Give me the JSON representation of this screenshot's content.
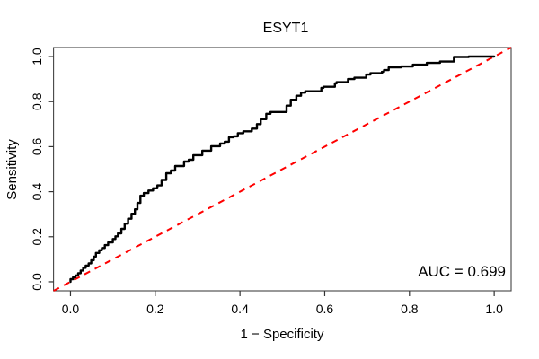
{
  "chart_data": {
    "type": "line",
    "subtype": "roc-step-curve",
    "title": "ESYT1",
    "xlabel": "1 − Specificity",
    "ylabel": "Sensitivity",
    "annotation": "AUC = 0.699",
    "auc": 0.699,
    "xlim": [
      -0.04,
      1.04
    ],
    "ylim": [
      -0.04,
      1.04
    ],
    "x_ticks": [
      "0.0",
      "0.2",
      "0.4",
      "0.6",
      "0.8",
      "1.0"
    ],
    "y_ticks": [
      "0.0",
      "0.2",
      "0.4",
      "0.6",
      "0.8",
      "1.0"
    ],
    "grid": false,
    "legend_position": "none",
    "colors": {
      "roc_curve": "#000000",
      "diagonal": "#ff0000",
      "box": "#444444",
      "tick": "#333333",
      "text": "#000000",
      "background": "#ffffff"
    },
    "series": [
      {
        "name": "ROC curve",
        "style": "step",
        "color": "#000000",
        "points": [
          [
            0.0,
            0.0
          ],
          [
            0.006,
            0.012
          ],
          [
            0.012,
            0.02
          ],
          [
            0.018,
            0.028
          ],
          [
            0.024,
            0.038
          ],
          [
            0.03,
            0.05
          ],
          [
            0.036,
            0.062
          ],
          [
            0.043,
            0.072
          ],
          [
            0.049,
            0.082
          ],
          [
            0.055,
            0.096
          ],
          [
            0.06,
            0.112
          ],
          [
            0.068,
            0.128
          ],
          [
            0.074,
            0.14
          ],
          [
            0.081,
            0.15
          ],
          [
            0.089,
            0.163
          ],
          [
            0.1,
            0.175
          ],
          [
            0.106,
            0.19
          ],
          [
            0.112,
            0.202
          ],
          [
            0.12,
            0.215
          ],
          [
            0.128,
            0.235
          ],
          [
            0.136,
            0.258
          ],
          [
            0.144,
            0.28
          ],
          [
            0.152,
            0.302
          ],
          [
            0.158,
            0.322
          ],
          [
            0.165,
            0.35
          ],
          [
            0.173,
            0.382
          ],
          [
            0.184,
            0.394
          ],
          [
            0.195,
            0.405
          ],
          [
            0.205,
            0.415
          ],
          [
            0.215,
            0.428
          ],
          [
            0.226,
            0.452
          ],
          [
            0.237,
            0.482
          ],
          [
            0.247,
            0.494
          ],
          [
            0.268,
            0.514
          ],
          [
            0.279,
            0.534
          ],
          [
            0.29,
            0.542
          ],
          [
            0.311,
            0.562
          ],
          [
            0.332,
            0.582
          ],
          [
            0.353,
            0.602
          ],
          [
            0.364,
            0.614
          ],
          [
            0.374,
            0.622
          ],
          [
            0.385,
            0.642
          ],
          [
            0.395,
            0.646
          ],
          [
            0.408,
            0.66
          ],
          [
            0.428,
            0.668
          ],
          [
            0.44,
            0.68
          ],
          [
            0.449,
            0.7
          ],
          [
            0.462,
            0.722
          ],
          [
            0.472,
            0.746
          ],
          [
            0.51,
            0.754
          ],
          [
            0.52,
            0.782
          ],
          [
            0.533,
            0.808
          ],
          [
            0.544,
            0.826
          ],
          [
            0.554,
            0.84
          ],
          [
            0.592,
            0.846
          ],
          [
            0.597,
            0.861
          ],
          [
            0.624,
            0.866
          ],
          [
            0.628,
            0.881
          ],
          [
            0.655,
            0.886
          ],
          [
            0.67,
            0.9
          ],
          [
            0.698,
            0.906
          ],
          [
            0.708,
            0.92
          ],
          [
            0.735,
            0.926
          ],
          [
            0.74,
            0.932
          ],
          [
            0.751,
            0.94
          ],
          [
            0.78,
            0.952
          ],
          [
            0.808,
            0.956
          ],
          [
            0.841,
            0.964
          ],
          [
            0.872,
            0.972
          ],
          [
            0.905,
            0.978
          ],
          [
            0.94,
            0.998
          ],
          [
            1.0,
            1.0
          ]
        ]
      },
      {
        "name": "chance diagonal",
        "style": "dashed-line",
        "color": "#ff0000",
        "points": [
          [
            -0.04,
            -0.04
          ],
          [
            1.04,
            1.04
          ]
        ]
      }
    ]
  }
}
